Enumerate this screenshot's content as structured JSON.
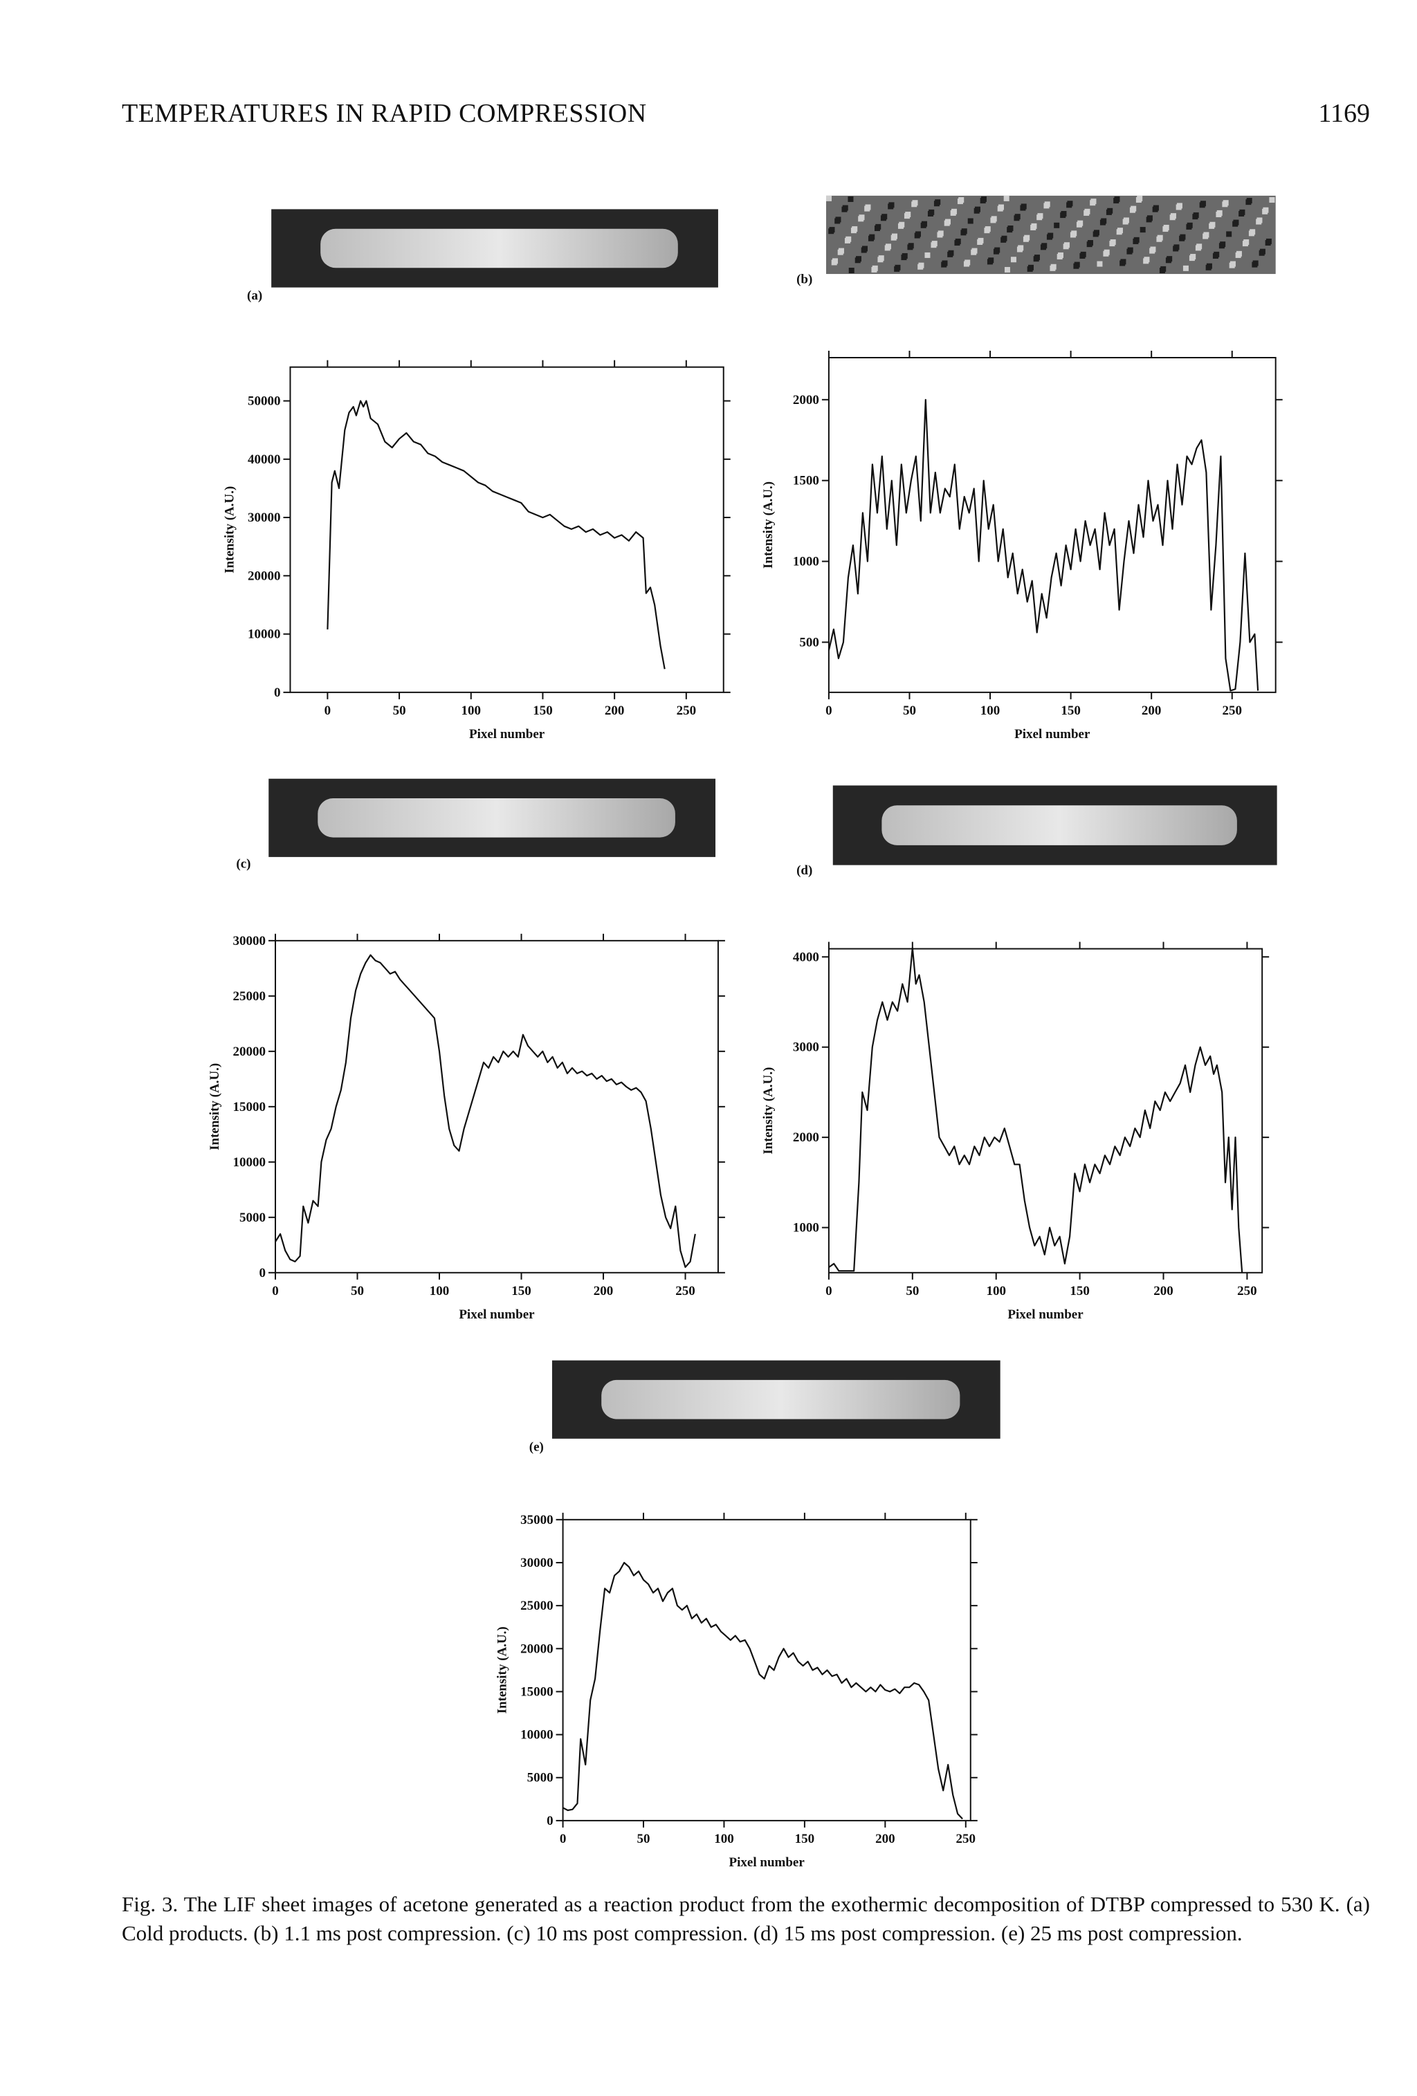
{
  "header": {
    "title": "TEMPERATURES IN RAPID COMPRESSION",
    "page_number": "1169"
  },
  "figure": {
    "panel_labels": [
      "(a)",
      "(b)",
      "(c)",
      "(d)",
      "(e)"
    ],
    "caption": "Fig. 3. The LIF sheet images of acetone generated as a reaction product from the exothermic decomposition of DTBP compressed to 530 K. (a) Cold products. (b) 1.1 ms post compression. (c) 10 ms post compression. (d) 15 ms post compression. (e) 25 ms post compression."
  },
  "chart_data": [
    {
      "type": "line",
      "xlabel": "Pixel number",
      "ylabel": "Intensity (A.U.)",
      "color": "#111111",
      "xlim": [
        -26,
        276
      ],
      "ylim": [
        0,
        55800
      ],
      "xticks": [
        0,
        50,
        100,
        150,
        200,
        250
      ],
      "yticks": [
        0,
        10000,
        20000,
        30000,
        40000,
        50000
      ],
      "x": [
        0,
        3,
        5,
        8,
        12,
        15,
        18,
        20,
        23,
        25,
        27,
        30,
        35,
        40,
        45,
        50,
        55,
        60,
        65,
        70,
        75,
        80,
        85,
        90,
        95,
        100,
        105,
        110,
        115,
        120,
        125,
        130,
        135,
        140,
        145,
        150,
        155,
        160,
        165,
        170,
        175,
        180,
        185,
        190,
        195,
        200,
        205,
        210,
        215,
        220,
        222,
        225,
        228,
        232,
        235
      ],
      "values": [
        10800,
        36000,
        38000,
        35000,
        45000,
        48000,
        49000,
        47500,
        50000,
        49000,
        50000,
        47000,
        46000,
        43000,
        42000,
        43500,
        44500,
        43000,
        42500,
        41000,
        40500,
        39500,
        39000,
        38500,
        38000,
        37000,
        36000,
        35500,
        34500,
        34000,
        33500,
        33000,
        32500,
        31000,
        30500,
        30000,
        30500,
        29500,
        28500,
        28000,
        28500,
        27500,
        28000,
        27000,
        27500,
        26500,
        27000,
        26000,
        27500,
        26500,
        17000,
        18000,
        15000,
        8000,
        4000
      ]
    },
    {
      "type": "line",
      "xlabel": "Pixel number",
      "ylabel": "Intensity (A.U.)",
      "color": "#111111",
      "xlim": [
        0,
        277
      ],
      "ylim": [
        190,
        2260
      ],
      "xticks": [
        0,
        50,
        100,
        150,
        200,
        250
      ],
      "yticks": [
        500,
        1000,
        1500,
        2000
      ],
      "x": [
        0,
        3,
        6,
        9,
        12,
        15,
        18,
        21,
        24,
        27,
        30,
        33,
        36,
        39,
        42,
        45,
        48,
        51,
        54,
        57,
        60,
        63,
        66,
        69,
        72,
        75,
        78,
        81,
        84,
        87,
        90,
        93,
        96,
        99,
        102,
        105,
        108,
        111,
        114,
        117,
        120,
        123,
        126,
        129,
        132,
        135,
        138,
        141,
        144,
        147,
        150,
        153,
        156,
        159,
        162,
        165,
        168,
        171,
        174,
        177,
        180,
        183,
        186,
        189,
        192,
        195,
        198,
        201,
        204,
        207,
        210,
        213,
        216,
        219,
        222,
        225,
        228,
        231,
        234,
        237,
        240,
        243,
        246,
        249,
        252,
        255,
        258,
        261,
        264,
        266
      ],
      "values": [
        450,
        580,
        400,
        500,
        900,
        1100,
        800,
        1300,
        1000,
        1600,
        1300,
        1650,
        1200,
        1500,
        1100,
        1600,
        1300,
        1500,
        1650,
        1250,
        2000,
        1300,
        1550,
        1300,
        1450,
        1400,
        1600,
        1200,
        1400,
        1300,
        1450,
        1000,
        1500,
        1200,
        1350,
        1000,
        1200,
        900,
        1050,
        800,
        950,
        750,
        880,
        560,
        800,
        650,
        900,
        1050,
        850,
        1100,
        950,
        1200,
        1000,
        1250,
        1100,
        1200,
        950,
        1300,
        1100,
        1200,
        700,
        1000,
        1250,
        1050,
        1350,
        1150,
        1500,
        1250,
        1350,
        1100,
        1500,
        1200,
        1600,
        1350,
        1650,
        1600,
        1700,
        1750,
        1550,
        700,
        1100,
        1650,
        400,
        200,
        210,
        500,
        1050,
        500,
        550,
        200
      ]
    },
    {
      "type": "line",
      "xlabel": "Pixel number",
      "ylabel": "Intensity (A.U.)",
      "color": "#111111",
      "xlim": [
        0,
        270
      ],
      "ylim": [
        0,
        30000
      ],
      "xticks": [
        0,
        50,
        100,
        150,
        200,
        250
      ],
      "yticks": [
        0,
        5000,
        10000,
        15000,
        20000,
        25000,
        30000
      ],
      "x": [
        0,
        3,
        6,
        9,
        12,
        15,
        17,
        20,
        23,
        26,
        28,
        31,
        34,
        37,
        40,
        43,
        46,
        49,
        52,
        55,
        58,
        61,
        64,
        67,
        70,
        73,
        76,
        79,
        82,
        85,
        88,
        91,
        94,
        97,
        100,
        103,
        106,
        109,
        112,
        115,
        118,
        121,
        124,
        127,
        130,
        133,
        136,
        139,
        142,
        145,
        148,
        151,
        154,
        157,
        160,
        163,
        166,
        169,
        172,
        175,
        178,
        181,
        184,
        187,
        190,
        193,
        196,
        199,
        202,
        205,
        208,
        211,
        214,
        217,
        220,
        223,
        226,
        229,
        232,
        235,
        238,
        241,
        244,
        247,
        250,
        253,
        256
      ],
      "values": [
        2800,
        3500,
        2000,
        1200,
        1000,
        1500,
        6000,
        4500,
        6500,
        6000,
        10000,
        12000,
        13000,
        15000,
        16500,
        19000,
        23000,
        25500,
        27000,
        28000,
        28700,
        28200,
        28000,
        27500,
        27000,
        27200,
        26500,
        26000,
        25500,
        25000,
        24500,
        24000,
        23500,
        23000,
        20000,
        16000,
        13000,
        11500,
        11000,
        13000,
        14500,
        16000,
        17500,
        19000,
        18500,
        19500,
        19000,
        20000,
        19500,
        20000,
        19500,
        21500,
        20500,
        20000,
        19500,
        20000,
        19000,
        19500,
        18500,
        19000,
        18000,
        18500,
        18000,
        18200,
        17800,
        18000,
        17500,
        17800,
        17300,
        17500,
        17000,
        17200,
        16800,
        16500,
        16700,
        16300,
        15500,
        13000,
        10000,
        7000,
        5000,
        4000,
        6000,
        2000,
        500,
        1000,
        3500
      ]
    },
    {
      "type": "line",
      "xlabel": "Pixel number",
      "ylabel": "Intensity (A.U.)",
      "color": "#111111",
      "xlim": [
        0,
        259
      ],
      "ylim": [
        500,
        4090
      ],
      "xticks": [
        0,
        50,
        100,
        150,
        200,
        250
      ],
      "yticks": [
        1000,
        2000,
        3000,
        4000
      ],
      "x": [
        0,
        3,
        6,
        15,
        18,
        20,
        23,
        26,
        29,
        32,
        35,
        38,
        41,
        44,
        47,
        50,
        52,
        54,
        57,
        60,
        63,
        66,
        69,
        72,
        75,
        78,
        81,
        84,
        87,
        90,
        93,
        96,
        99,
        102,
        105,
        108,
        111,
        114,
        117,
        120,
        123,
        126,
        129,
        132,
        135,
        138,
        141,
        144,
        147,
        150,
        153,
        156,
        159,
        162,
        165,
        168,
        171,
        174,
        177,
        180,
        183,
        186,
        189,
        192,
        195,
        198,
        201,
        204,
        207,
        210,
        213,
        216,
        219,
        222,
        225,
        228,
        230,
        232,
        235,
        237,
        239,
        241,
        243,
        245,
        247
      ],
      "values": [
        560,
        600,
        520,
        520,
        1500,
        2500,
        2300,
        3000,
        3300,
        3500,
        3300,
        3500,
        3400,
        3700,
        3500,
        4100,
        3700,
        3800,
        3500,
        3000,
        2500,
        2000,
        1900,
        1800,
        1900,
        1700,
        1800,
        1700,
        1900,
        1800,
        2000,
        1900,
        2000,
        1950,
        2100,
        1900,
        1700,
        1700,
        1300,
        1000,
        800,
        900,
        700,
        1000,
        800,
        900,
        600,
        900,
        1600,
        1400,
        1700,
        1500,
        1700,
        1600,
        1800,
        1700,
        1900,
        1800,
        2000,
        1900,
        2100,
        2000,
        2300,
        2100,
        2400,
        2300,
        2500,
        2400,
        2500,
        2600,
        2800,
        2500,
        2800,
        3000,
        2800,
        2900,
        2700,
        2800,
        2500,
        1500,
        2000,
        1200,
        2000,
        1000,
        500
      ]
    },
    {
      "type": "line",
      "xlabel": "Pixel number",
      "ylabel": "Intensity (A.U.)",
      "color": "#111111",
      "xlim": [
        0,
        253
      ],
      "ylim": [
        0,
        35000
      ],
      "xticks": [
        0,
        50,
        100,
        150,
        200,
        250
      ],
      "yticks": [
        0,
        5000,
        10000,
        15000,
        20000,
        25000,
        30000,
        35000
      ],
      "x": [
        0,
        3,
        6,
        9,
        11,
        14,
        17,
        20,
        23,
        26,
        29,
        32,
        35,
        38,
        41,
        44,
        47,
        50,
        53,
        56,
        59,
        62,
        65,
        68,
        71,
        74,
        77,
        80,
        83,
        86,
        89,
        92,
        95,
        98,
        101,
        104,
        107,
        110,
        113,
        116,
        119,
        122,
        125,
        128,
        131,
        134,
        137,
        140,
        143,
        146,
        149,
        152,
        155,
        158,
        161,
        164,
        167,
        170,
        173,
        176,
        179,
        182,
        185,
        188,
        191,
        194,
        197,
        200,
        203,
        206,
        209,
        212,
        215,
        218,
        221,
        224,
        227,
        230,
        233,
        236,
        239,
        242,
        245,
        248
      ],
      "values": [
        1500,
        1200,
        1300,
        2000,
        9500,
        6500,
        14000,
        16500,
        22000,
        27000,
        26500,
        28500,
        29000,
        30000,
        29500,
        28500,
        29000,
        28000,
        27500,
        26500,
        27000,
        25500,
        26500,
        27000,
        25000,
        24500,
        25000,
        23500,
        24000,
        23000,
        23500,
        22500,
        22800,
        22000,
        21500,
        21000,
        21500,
        20800,
        21000,
        20000,
        18500,
        17000,
        16500,
        18000,
        17500,
        19000,
        20000,
        19000,
        19500,
        18500,
        18000,
        18500,
        17500,
        17800,
        17000,
        17500,
        16800,
        17000,
        16000,
        16500,
        15500,
        16000,
        15500,
        15000,
        15500,
        15000,
        15800,
        15200,
        15000,
        15300,
        14800,
        15500,
        15500,
        16000,
        15800,
        15000,
        14000,
        10000,
        6000,
        3500,
        6500,
        3000,
        800,
        200
      ]
    }
  ]
}
